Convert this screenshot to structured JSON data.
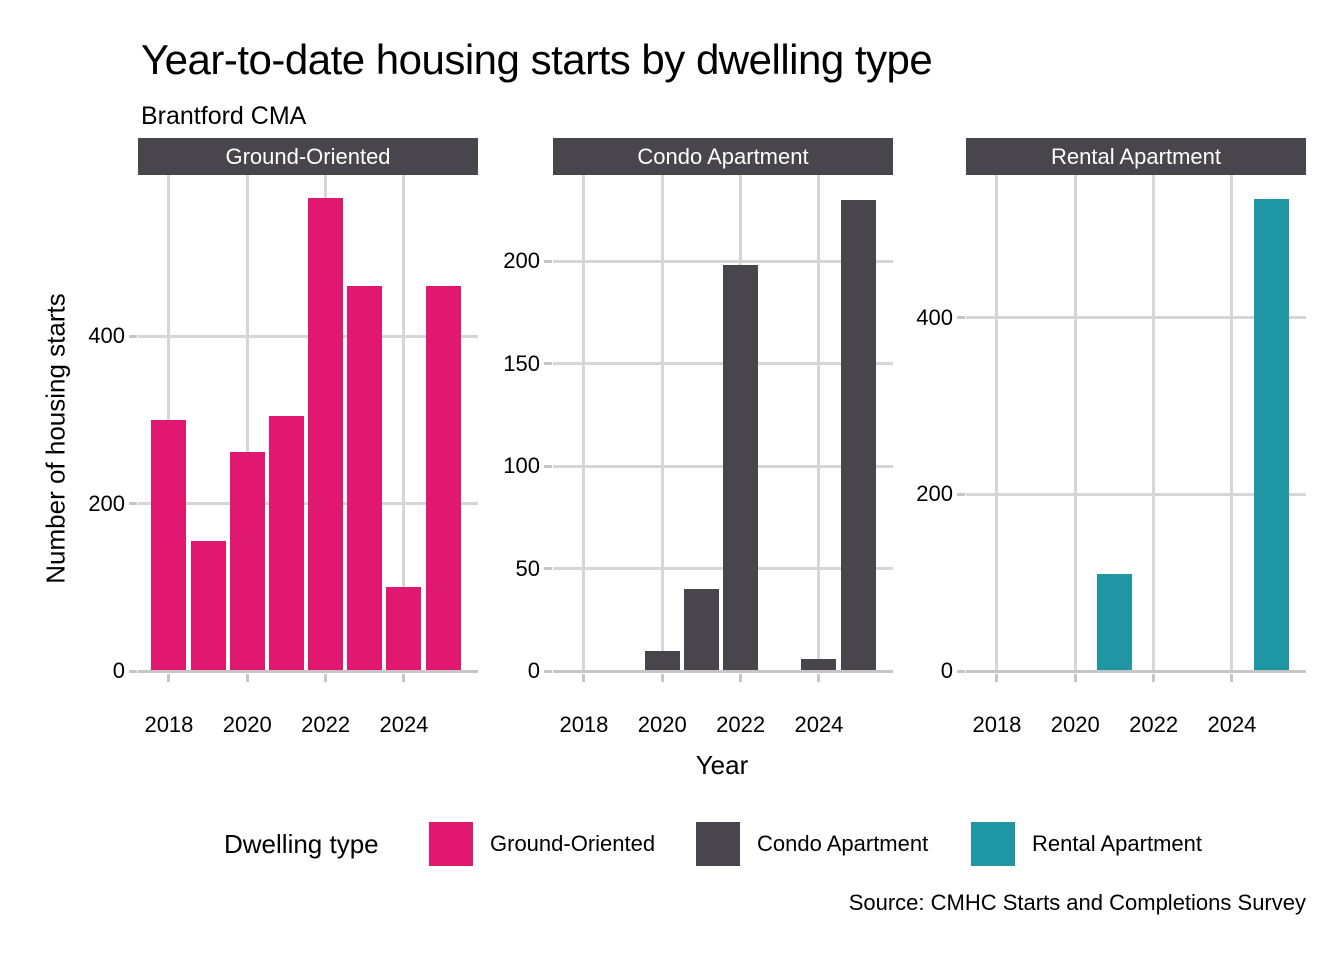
{
  "title": "Year-to-date housing starts by dwelling type",
  "subtitle": "Brantford CMA",
  "y_axis_title": "Number of housing starts",
  "x_axis_title": "Year",
  "caption": "Source: CMHC Starts and Completions Survey",
  "legend": {
    "title": "Dwelling type",
    "items": [
      {
        "label": "Ground-Oriented",
        "color": "#E0186F"
      },
      {
        "label": "Condo Apartment",
        "color": "#48454C"
      },
      {
        "label": "Rental Apartment",
        "color": "#1E96A4"
      }
    ]
  },
  "colors": {
    "ground_oriented": "#E0186F",
    "condo_apartment": "#48454C",
    "rental_apartment": "#1E96A4",
    "strip_background": "#48454C",
    "strip_text": "#ffffff",
    "gridline": "#D6D6D6",
    "axis_line": "#C6C6C6",
    "text": "#000000"
  },
  "chart_data": {
    "type": "bar",
    "faceted": true,
    "grid": true,
    "legend_position": "bottom",
    "x_ticks": [
      2018,
      2020,
      2022,
      2024
    ],
    "x_range": [
      2017.21,
      2025.89
    ],
    "facets": [
      {
        "label": "Ground-Oriented",
        "color": "#E0186F",
        "years": [
          2018,
          2019,
          2020,
          2021,
          2022,
          2023,
          2024,
          2025
        ],
        "values": [
          300,
          155,
          262,
          305,
          565,
          460,
          100,
          460
        ],
        "y_ticks": [
          0,
          200,
          400
        ],
        "y_range": [
          0,
          593
        ]
      },
      {
        "label": "Condo Apartment",
        "color": "#48454C",
        "years": [
          2020,
          2021,
          2022,
          2024,
          2025
        ],
        "values": [
          10,
          40,
          198,
          6,
          230
        ],
        "y_ticks": [
          0,
          50,
          100,
          150,
          200
        ],
        "y_range": [
          0,
          242
        ]
      },
      {
        "label": "Rental Apartment",
        "color": "#1E96A4",
        "years": [
          2021,
          2025
        ],
        "values": [
          110,
          535
        ],
        "y_ticks": [
          0,
          200,
          400
        ],
        "y_range": [
          0,
          562
        ]
      }
    ]
  }
}
